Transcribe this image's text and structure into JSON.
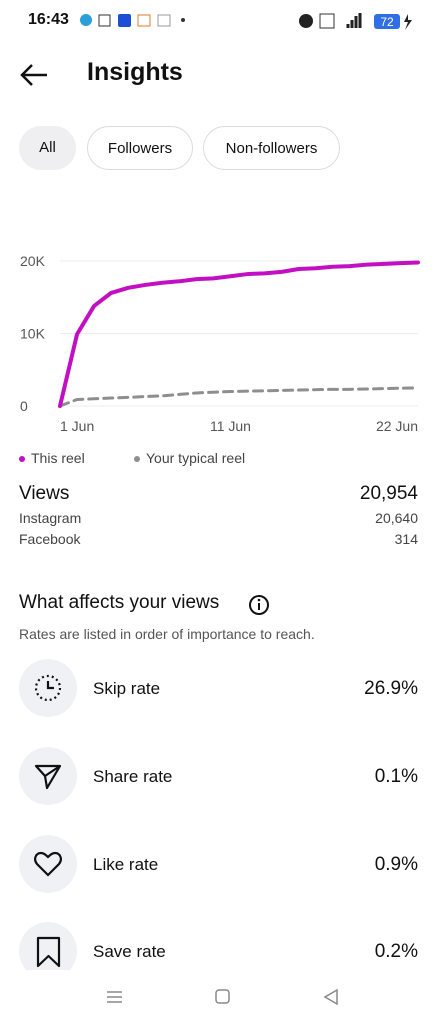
{
  "status_bar": {
    "time": "16:43",
    "battery": "72"
  },
  "header": {
    "title": "Insights"
  },
  "tabs": [
    "All",
    "Followers",
    "Non-followers"
  ],
  "chart_data": {
    "type": "line",
    "x": [
      1,
      2,
      3,
      4,
      5,
      6,
      7,
      8,
      9,
      10,
      11,
      12,
      13,
      14,
      15,
      16,
      17,
      18,
      19,
      20,
      21,
      22
    ],
    "xlim": [
      1,
      22
    ],
    "xticks": [
      {
        "value": 1,
        "label": "1 Jun"
      },
      {
        "value": 11,
        "label": "11 Jun"
      },
      {
        "value": 22,
        "label": "22 Jun"
      }
    ],
    "ylim": [
      0,
      20000
    ],
    "yticks": [
      0,
      {
        "value": 10000,
        "label": "10K"
      },
      {
        "value": 20000,
        "label": "20K"
      }
    ],
    "grid": true,
    "series": [
      {
        "name": "This reel",
        "color": "#c20fc4",
        "dashed": false,
        "values": [
          0,
          9900,
          13800,
          15600,
          16300,
          16700,
          17000,
          17200,
          17500,
          17600,
          17900,
          18200,
          18300,
          18500,
          18900,
          19000,
          19200,
          19300,
          19500,
          19600,
          19700,
          19800
        ]
      },
      {
        "name": "Your typical reel",
        "color": "#8e8e8e",
        "dashed": true,
        "values": [
          0,
          900,
          1000,
          1100,
          1200,
          1300,
          1400,
          1600,
          1800,
          1900,
          2000,
          2050,
          2100,
          2150,
          2200,
          2250,
          2300,
          2300,
          2350,
          2400,
          2450,
          2500
        ]
      }
    ]
  },
  "views": {
    "label": "Views",
    "total": "20,954",
    "rows": [
      {
        "label": "Instagram",
        "value": "20,640"
      },
      {
        "label": "Facebook",
        "value": "314"
      }
    ]
  },
  "affects": {
    "title": "What affects your views",
    "subtitle": "Rates are listed in order of importance to reach.",
    "rows": [
      {
        "label": "Skip rate",
        "value": "26.9%"
      },
      {
        "label": "Share rate",
        "value": "0.1%"
      },
      {
        "label": "Like rate",
        "value": "0.9%"
      },
      {
        "label": "Save rate",
        "value": "0.2%"
      }
    ]
  }
}
